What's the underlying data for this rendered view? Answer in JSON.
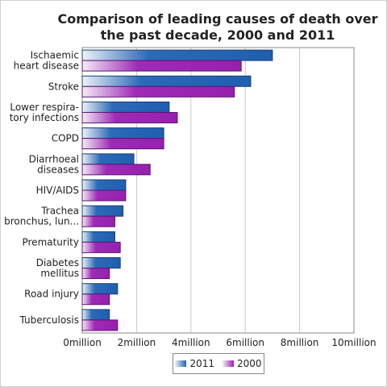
{
  "chart_data": {
    "type": "bar",
    "orientation": "horizontal",
    "title": "Comparison of leading causes of death over the past decade, 2000 and 2011",
    "categories": [
      [
        "Ischaemic",
        "heart disease"
      ],
      [
        "Stroke"
      ],
      [
        "Lower respira-",
        "tory infections"
      ],
      [
        "COPD"
      ],
      [
        "Diarrhoeal",
        "diseases"
      ],
      [
        "HIV/AIDS"
      ],
      [
        "Trachea",
        "bronchus, lun..."
      ],
      [
        "Prematurity"
      ],
      [
        "Diabetes",
        "mellitus"
      ],
      [
        "Road injury"
      ],
      [
        "Tuberculosis"
      ]
    ],
    "series": [
      {
        "name": "2011",
        "color": "#1f64b4",
        "values": [
          7.0,
          6.2,
          3.2,
          3.0,
          1.9,
          1.6,
          1.5,
          1.2,
          1.4,
          1.3,
          1.0
        ]
      },
      {
        "name": "2000",
        "color": "#9c1fb4",
        "values": [
          5.85,
          5.6,
          3.5,
          3.0,
          2.5,
          1.6,
          1.2,
          1.4,
          1.0,
          1.0,
          1.3
        ]
      }
    ],
    "xlim": [
      0,
      10
    ],
    "xticks": [
      "0million",
      "2million",
      "4million",
      "6million",
      "8million",
      "10million"
    ],
    "grid": true,
    "legend_position": "bottom-center"
  }
}
